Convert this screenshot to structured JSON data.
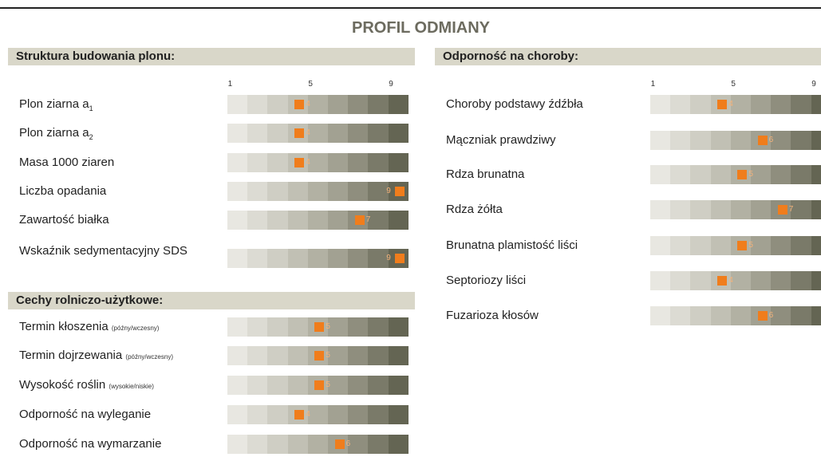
{
  "title": "PROFIL ODMIANY",
  "sections": [
    {
      "title": "Struktura budowania plonu:",
      "scale": [
        1,
        5,
        9
      ],
      "rows": [
        {
          "label": "Plon ziarna a",
          "sub": "1",
          "value": 4
        },
        {
          "label": "Plon ziarna a",
          "sub": "2",
          "value": 4
        },
        {
          "label": "Masa 1000 ziaren",
          "value": 4
        },
        {
          "label": "Liczba opadania",
          "value": 9
        },
        {
          "label": "Zawartość białka",
          "value": 7
        },
        {
          "label": "Wskaźnik sedymentacyjny SDS",
          "value": 9
        }
      ]
    },
    {
      "title": "Cechy rolniczo-użytkowe:",
      "rows": [
        {
          "label": "Termin kłoszenia",
          "note": "(późny/wczesny)",
          "value": 5
        },
        {
          "label": "Termin dojrzewania",
          "note": "(późny/wczesny)",
          "value": 5
        },
        {
          "label": "Wysokość roślin",
          "note": "(wysokie/niskie)",
          "value": 5
        },
        {
          "label": "Odporność na wyleganie",
          "value": 4
        },
        {
          "label": "Odporność na wymarzanie",
          "value": 6
        }
      ]
    },
    {
      "title": "Odporność na choroby:",
      "scale": [
        1,
        5,
        9
      ],
      "rows": [
        {
          "label": "Choroby podstawy źdźbła",
          "value": 4
        },
        {
          "label": "Mączniak prawdziwy",
          "value": 6
        },
        {
          "label": "Rdza brunatna",
          "value": 5
        },
        {
          "label": "Rdza żółta",
          "value": 7
        },
        {
          "label": "Brunatna plamistość liści",
          "value": 5
        },
        {
          "label": "Septoriozy liści",
          "value": 4
        },
        {
          "label": "Fuzarioza kłosów",
          "value": 6
        }
      ]
    }
  ]
}
